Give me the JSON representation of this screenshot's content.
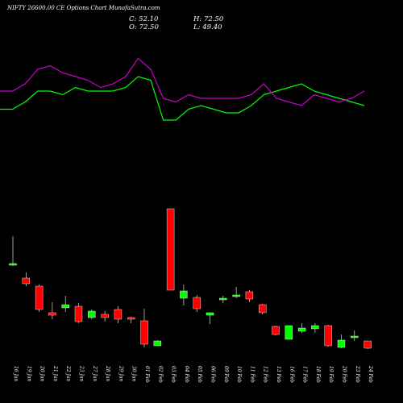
{
  "header": {
    "title": "NIFTY 26600.00 CE Options  Chart  MunafaSutra.com",
    "close_label": "C: 52.10",
    "high_label": "H: 72.50",
    "open_label": "O: 72.50",
    "low_label": "L: 49.40"
  },
  "colors": {
    "background": "#000000",
    "up": "#00ff00",
    "down": "#ff0000",
    "line_green": "#00ff00",
    "line_magenta": "#cc00cc",
    "text": "#ffffff"
  },
  "chart_data": [
    {
      "type": "line",
      "grid": false,
      "legend": "none",
      "y_scale": "unlabeled",
      "series": [
        {
          "color": "#00ff00",
          "values": [
            81,
            81,
            83,
            86,
            86,
            85,
            87,
            86,
            86,
            86,
            87,
            90,
            89,
            78,
            78,
            81,
            82,
            81,
            80,
            80,
            82,
            85,
            86,
            87,
            88,
            86,
            85,
            84,
            83,
            82
          ]
        },
        {
          "color": "#cc00cc",
          "values": [
            86,
            86,
            88,
            92,
            93,
            91,
            90,
            89,
            87,
            88,
            90,
            95,
            92,
            84,
            83,
            85,
            84,
            84,
            84,
            84,
            85,
            88,
            84,
            83,
            82,
            85,
            84,
            83,
            84,
            86
          ]
        }
      ]
    },
    {
      "type": "candlestick",
      "grid": false,
      "legend": "none",
      "y_scale": "unlabeled",
      "categories": [
        "16 Jan",
        "19 Jan",
        "20 Jan",
        "21 Jan",
        "22 Jan",
        "23 Jan",
        "27 Jan",
        "28 Jan",
        "29 Jan",
        "30 Jan",
        "01 Feb",
        "02 Feb",
        "03 Feb",
        "04 Feb",
        "05 Feb",
        "06 Feb",
        "09 Feb",
        "10 Feb",
        "11 Feb",
        "12 Feb",
        "13 Feb",
        "16 Feb",
        "17 Feb",
        "18 Feb",
        "19 Feb",
        "20 Feb",
        "23 Feb",
        "24 Feb"
      ],
      "candles": [
        {
          "open": 172,
          "high": 207,
          "low": 170,
          "close": 173
        },
        {
          "open": 155,
          "high": 162,
          "low": 145,
          "close": 148
        },
        {
          "open": 145,
          "high": 147,
          "low": 113,
          "close": 116
        },
        {
          "open": 112,
          "high": 125,
          "low": 104,
          "close": 109
        },
        {
          "open": 118,
          "high": 133,
          "low": 113,
          "close": 122
        },
        {
          "open": 120,
          "high": 124,
          "low": 99,
          "close": 101
        },
        {
          "open": 106,
          "high": 116,
          "low": 104,
          "close": 114
        },
        {
          "open": 110,
          "high": 114,
          "low": 101,
          "close": 106
        },
        {
          "open": 116,
          "high": 120,
          "low": 99,
          "close": 104
        },
        {
          "open": 106,
          "high": 107,
          "low": 99,
          "close": 104
        },
        {
          "open": 102,
          "high": 117,
          "low": 69,
          "close": 73
        },
        {
          "open": 71,
          "high": 78,
          "low": 71,
          "close": 77
        },
        {
          "open": 241,
          "high": 241,
          "low": 140,
          "close": 140
        },
        {
          "open": 130,
          "high": 147,
          "low": 121,
          "close": 139
        },
        {
          "open": 131,
          "high": 134,
          "low": 113,
          "close": 117
        },
        {
          "open": 109,
          "high": 112,
          "low": 98,
          "close": 112
        },
        {
          "open": 129,
          "high": 133,
          "low": 124,
          "close": 130
        },
        {
          "open": 132,
          "high": 144,
          "low": 130,
          "close": 134
        },
        {
          "open": 138,
          "high": 140,
          "low": 125,
          "close": 129
        },
        {
          "open": 122,
          "high": 123,
          "low": 110,
          "close": 112
        },
        {
          "open": 95,
          "high": 96,
          "low": 84,
          "close": 85
        },
        {
          "open": 79,
          "high": 96,
          "low": 79,
          "close": 96
        },
        {
          "open": 89,
          "high": 99,
          "low": 87,
          "close": 93
        },
        {
          "open": 92,
          "high": 99,
          "low": 87,
          "close": 96
        },
        {
          "open": 96,
          "high": 97,
          "low": 70,
          "close": 71
        },
        {
          "open": 69,
          "high": 85,
          "low": 68,
          "close": 78
        },
        {
          "open": 82,
          "high": 90,
          "low": 77,
          "close": 83
        },
        {
          "open": 77,
          "high": 77,
          "low": 67,
          "close": 68
        }
      ]
    }
  ]
}
